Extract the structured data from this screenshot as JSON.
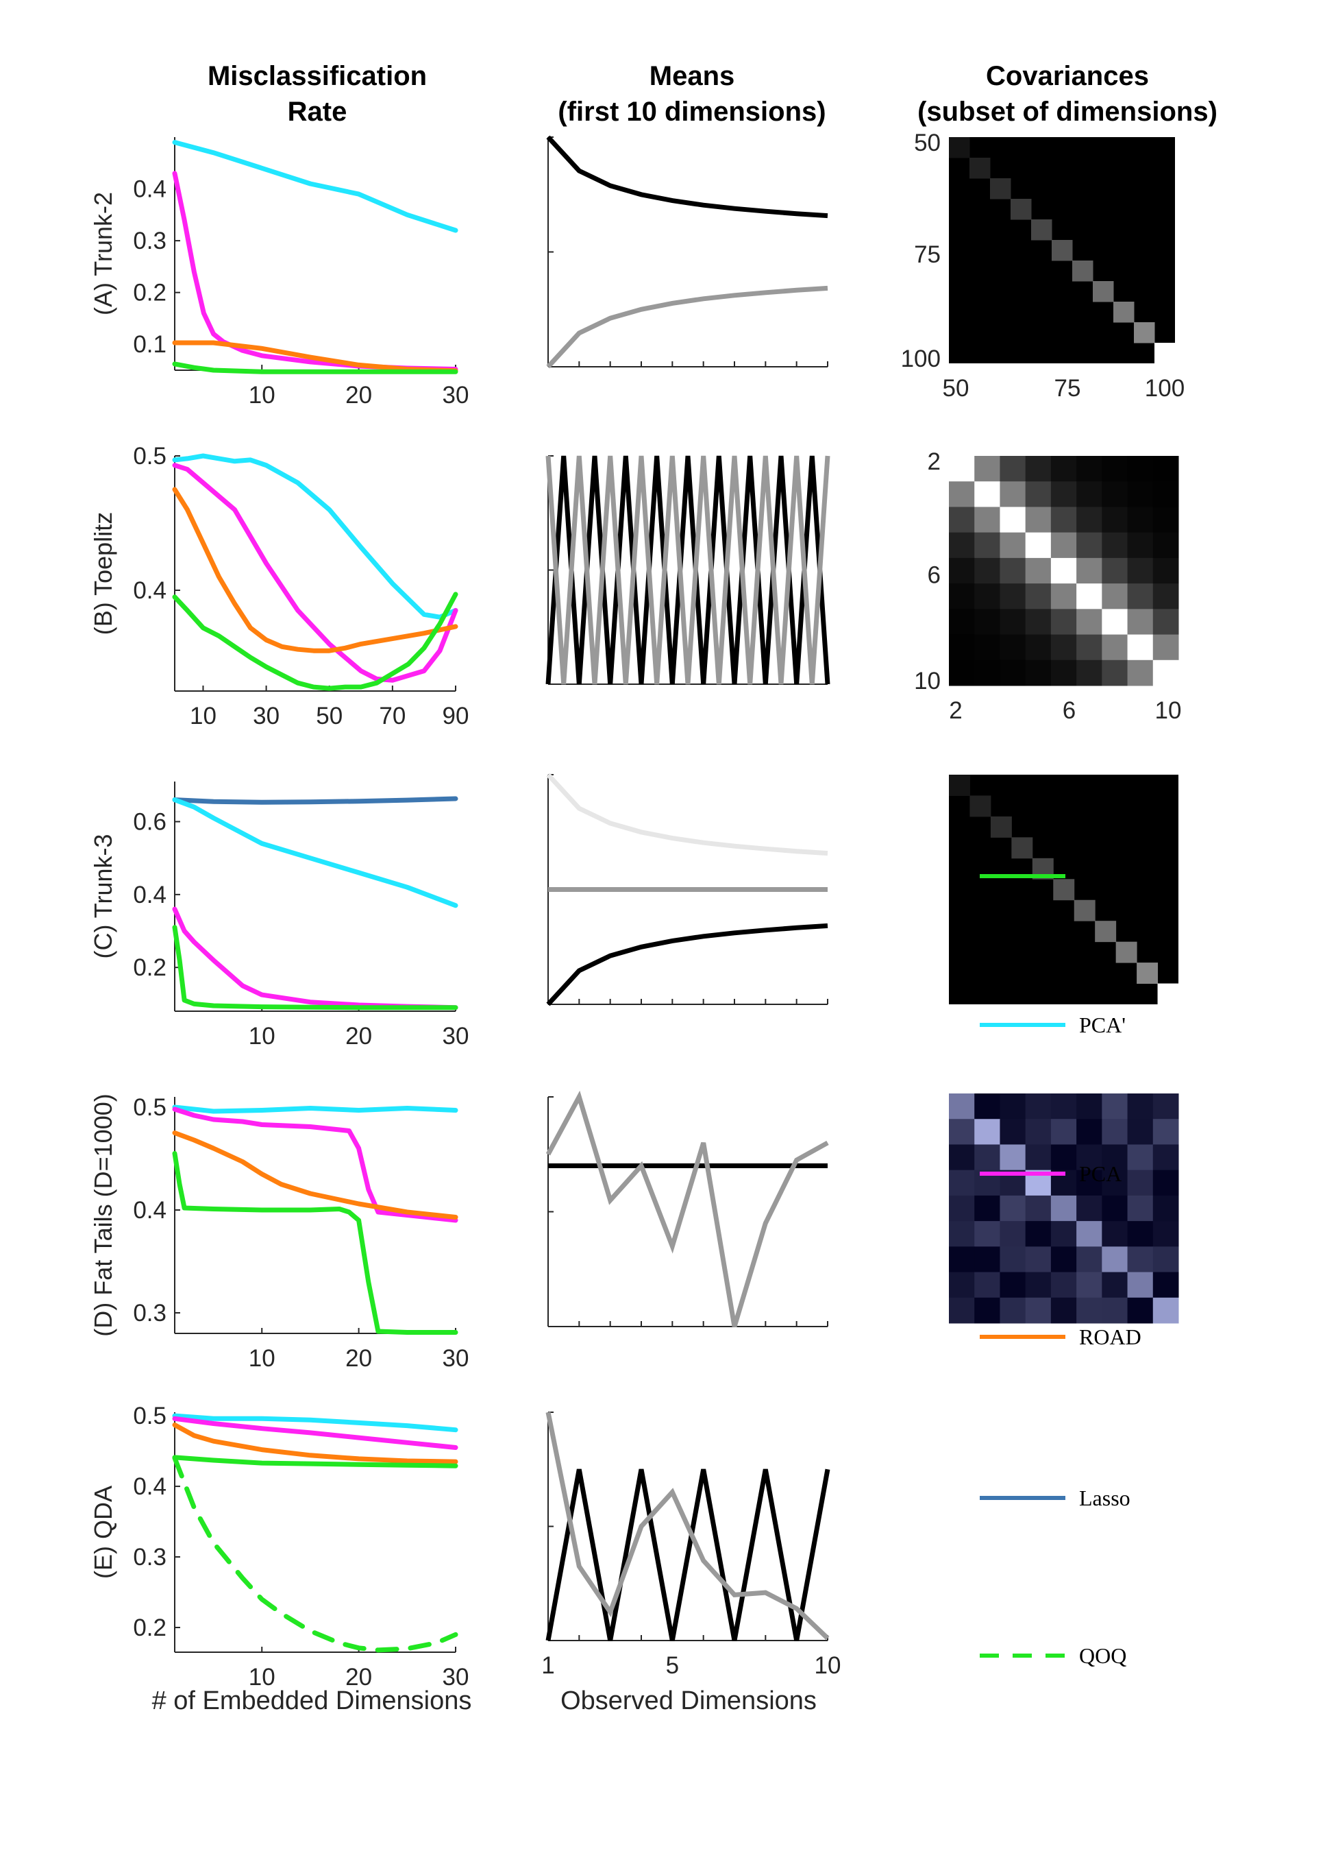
{
  "headers": {
    "col1_line1": "Misclassification",
    "col1_line2": "Rate",
    "col2_line1": "Means",
    "col2_line2": "(first 10 dimensions)",
    "col3_line1": "Covariances",
    "col3_line2": "(subset of dimensions)"
  },
  "colors": {
    "PCA'": "#22e6ff",
    "PCA": "#ff22f2",
    "ROAD": "#ff7f0e",
    "Lasso": "#3c76b0",
    "QOQ": "#22e622",
    "LOL": "#22e622",
    "class1": "#000000",
    "class2": "#999999",
    "class3": "#e6e6e6"
  },
  "legend": [
    {
      "name": "PCA'",
      "color": "#22e6ff",
      "dash": false
    },
    {
      "name": "PCA",
      "color": "#ff22f2",
      "dash": false
    },
    {
      "name": "ROAD",
      "color": "#ff7f0e",
      "dash": false
    },
    {
      "name": "Lasso",
      "color": "#3c76b0",
      "dash": false
    },
    {
      "name": "QOQ",
      "color": "#22e622",
      "dash": true
    }
  ],
  "chart_data": [
    {
      "type": "line",
      "panel": "(A) Trunk-2",
      "ylabel": "(A) Trunk-2",
      "xlabel": "",
      "xlim": [
        1,
        30
      ],
      "ylim": [
        0.05,
        0.5
      ],
      "xticks": [
        10,
        20,
        30
      ],
      "yticks": [
        0.1,
        0.2,
        0.3,
        0.4
      ],
      "ytick_labels": [
        "0.1",
        "0.2",
        "0.3",
        "0.4"
      ],
      "series": [
        {
          "key": "PCA'",
          "x": [
            1,
            5,
            10,
            15,
            20,
            25,
            30
          ],
          "values": [
            0.49,
            0.47,
            0.44,
            0.41,
            0.39,
            0.35,
            0.32
          ]
        },
        {
          "key": "PCA",
          "x": [
            1,
            2,
            3,
            4,
            5,
            6,
            8,
            10,
            15,
            20,
            25,
            30
          ],
          "values": [
            0.43,
            0.34,
            0.24,
            0.16,
            0.12,
            0.105,
            0.088,
            0.078,
            0.066,
            0.058,
            0.054,
            0.052
          ]
        },
        {
          "key": "ROAD",
          "x": [
            1,
            5,
            10,
            15,
            20,
            25,
            30
          ],
          "values": [
            0.103,
            0.103,
            0.092,
            0.075,
            0.06,
            0.052,
            0.049
          ]
        },
        {
          "key": "LOL",
          "x": [
            1,
            3,
            5,
            10,
            15,
            20,
            25,
            30
          ],
          "values": [
            0.062,
            0.055,
            0.05,
            0.047,
            0.047,
            0.047,
            0.047,
            0.047
          ]
        }
      ]
    },
    {
      "type": "line",
      "panel": "(B) Toeplitz",
      "ylabel": "(B) Toeplitz",
      "xlabel": "",
      "xlim": [
        1,
        90
      ],
      "ylim": [
        0.325,
        0.5
      ],
      "xticks": [
        10,
        30,
        50,
        70,
        90
      ],
      "yticks": [
        0.4,
        0.5
      ],
      "ytick_labels": [
        "0.4",
        "0.5"
      ],
      "series": [
        {
          "key": "PCA'",
          "x": [
            1,
            5,
            10,
            15,
            20,
            25,
            30,
            40,
            50,
            60,
            70,
            80,
            85,
            90
          ],
          "values": [
            0.497,
            0.498,
            0.5,
            0.498,
            0.496,
            0.497,
            0.493,
            0.48,
            0.46,
            0.432,
            0.405,
            0.382,
            0.38,
            0.385
          ]
        },
        {
          "key": "PCA",
          "x": [
            1,
            5,
            10,
            15,
            20,
            25,
            30,
            40,
            50,
            60,
            65,
            70,
            80,
            85,
            90
          ],
          "values": [
            0.493,
            0.49,
            0.48,
            0.47,
            0.46,
            0.44,
            0.42,
            0.385,
            0.36,
            0.34,
            0.334,
            0.333,
            0.34,
            0.355,
            0.385
          ]
        },
        {
          "key": "ROAD",
          "x": [
            1,
            5,
            10,
            15,
            20,
            25,
            30,
            35,
            40,
            45,
            50,
            55,
            60,
            70,
            80,
            90
          ],
          "values": [
            0.475,
            0.46,
            0.435,
            0.41,
            0.39,
            0.372,
            0.363,
            0.358,
            0.356,
            0.355,
            0.355,
            0.357,
            0.36,
            0.364,
            0.368,
            0.373
          ]
        },
        {
          "key": "LOL",
          "x": [
            1,
            5,
            10,
            15,
            20,
            25,
            30,
            35,
            40,
            45,
            50,
            55,
            60,
            65,
            70,
            75,
            80,
            85,
            90
          ],
          "values": [
            0.395,
            0.385,
            0.372,
            0.366,
            0.358,
            0.35,
            0.343,
            0.337,
            0.331,
            0.328,
            0.327,
            0.328,
            0.328,
            0.331,
            0.338,
            0.345,
            0.357,
            0.375,
            0.397
          ]
        }
      ]
    },
    {
      "type": "line",
      "panel": "(C) Trunk-3",
      "ylabel": "(C) Trunk-3",
      "xlabel": "",
      "xlim": [
        1,
        30
      ],
      "ylim": [
        0.08,
        0.71
      ],
      "xticks": [
        10,
        20,
        30
      ],
      "yticks": [
        0.2,
        0.4,
        0.6
      ],
      "ytick_labels": [
        "0.2",
        "0.4",
        "0.6"
      ],
      "series": [
        {
          "key": "Lasso",
          "x": [
            1,
            5,
            10,
            15,
            20,
            25,
            30
          ],
          "values": [
            0.66,
            0.655,
            0.653,
            0.654,
            0.656,
            0.659,
            0.663
          ]
        },
        {
          "key": "PCA'",
          "x": [
            1,
            3,
            5,
            10,
            15,
            20,
            25,
            30
          ],
          "values": [
            0.66,
            0.64,
            0.61,
            0.54,
            0.5,
            0.46,
            0.42,
            0.37
          ]
        },
        {
          "key": "PCA",
          "x": [
            1,
            2,
            3,
            5,
            8,
            10,
            15,
            20,
            25,
            30
          ],
          "values": [
            0.36,
            0.3,
            0.27,
            0.22,
            0.15,
            0.125,
            0.105,
            0.097,
            0.093,
            0.09
          ]
        },
        {
          "key": "LOL",
          "x": [
            1,
            1.5,
            2,
            3,
            5,
            10,
            15,
            20,
            25,
            30
          ],
          "values": [
            0.31,
            0.22,
            0.11,
            0.1,
            0.095,
            0.092,
            0.091,
            0.09,
            0.09,
            0.09
          ]
        }
      ]
    },
    {
      "type": "line",
      "panel": "(D) Fat Tails (D=1000)",
      "ylabel": "(D) Fat Tails (D=1000)",
      "xlabel": "",
      "xlim": [
        1,
        30
      ],
      "ylim": [
        0.28,
        0.51
      ],
      "xticks": [
        10,
        20,
        30
      ],
      "yticks": [
        0.3,
        0.4,
        0.5
      ],
      "ytick_labels": [
        "0.3",
        "0.4",
        "0.5"
      ],
      "series": [
        {
          "key": "PCA'",
          "x": [
            1,
            5,
            10,
            15,
            20,
            25,
            30
          ],
          "values": [
            0.5,
            0.496,
            0.497,
            0.499,
            0.497,
            0.499,
            0.497
          ]
        },
        {
          "key": "PCA",
          "x": [
            1,
            3,
            5,
            8,
            10,
            15,
            19,
            20,
            21,
            22,
            25,
            30
          ],
          "values": [
            0.498,
            0.492,
            0.488,
            0.486,
            0.483,
            0.481,
            0.477,
            0.46,
            0.42,
            0.398,
            0.395,
            0.39
          ]
        },
        {
          "key": "ROAD",
          "x": [
            1,
            3,
            5,
            8,
            10,
            12,
            15,
            18,
            20,
            25,
            30
          ],
          "values": [
            0.475,
            0.468,
            0.46,
            0.447,
            0.435,
            0.425,
            0.416,
            0.41,
            0.406,
            0.398,
            0.393
          ]
        },
        {
          "key": "LOL",
          "x": [
            1,
            1.5,
            2,
            5,
            10,
            15,
            18,
            19,
            20,
            21,
            22,
            25,
            30
          ],
          "values": [
            0.455,
            0.425,
            0.402,
            0.401,
            0.4,
            0.4,
            0.401,
            0.398,
            0.39,
            0.33,
            0.282,
            0.281,
            0.281
          ]
        }
      ]
    },
    {
      "type": "line",
      "panel": "(E) QDA",
      "ylabel": "(E) QDA",
      "xlabel": "# of Embedded Dimensions",
      "xlim": [
        1,
        30
      ],
      "ylim": [
        0.165,
        0.505
      ],
      "xticks": [
        10,
        20,
        30
      ],
      "yticks": [
        0.2,
        0.3,
        0.4,
        0.5
      ],
      "ytick_labels": [
        "0.2",
        "0.3",
        "0.4",
        "0.5"
      ],
      "series": [
        {
          "key": "PCA'",
          "x": [
            1,
            5,
            10,
            15,
            20,
            25,
            30
          ],
          "values": [
            0.5,
            0.496,
            0.496,
            0.494,
            0.49,
            0.486,
            0.48
          ]
        },
        {
          "key": "PCA",
          "x": [
            1,
            5,
            10,
            15,
            20,
            25,
            30
          ],
          "values": [
            0.496,
            0.489,
            0.482,
            0.476,
            0.469,
            0.462,
            0.455
          ]
        },
        {
          "key": "ROAD",
          "x": [
            1,
            3,
            5,
            10,
            15,
            20,
            25,
            30
          ],
          "values": [
            0.487,
            0.472,
            0.464,
            0.452,
            0.444,
            0.439,
            0.436,
            0.435
          ]
        },
        {
          "key": "LOL",
          "x": [
            1,
            5,
            10,
            15,
            20,
            25,
            30
          ],
          "values": [
            0.441,
            0.437,
            0.433,
            0.432,
            0.431,
            0.43,
            0.429
          ]
        },
        {
          "key": "QOQ",
          "dash": true,
          "x": [
            1,
            3,
            5,
            8,
            10,
            12,
            15,
            18,
            20,
            22,
            25,
            28,
            30
          ],
          "values": [
            0.44,
            0.37,
            0.32,
            0.27,
            0.24,
            0.22,
            0.195,
            0.178,
            0.171,
            0.168,
            0.17,
            0.178,
            0.19
          ]
        }
      ]
    },
    {
      "type": "line",
      "panel": "Means (A)",
      "xlim": [
        1,
        10
      ],
      "ylim": [
        -1,
        1
      ],
      "series": [
        {
          "key": "class1",
          "x": [
            1,
            2,
            3,
            4,
            5,
            6,
            7,
            8,
            9,
            10
          ],
          "values": [
            1.0,
            0.707,
            0.577,
            0.5,
            0.447,
            0.408,
            0.378,
            0.354,
            0.333,
            0.316
          ]
        },
        {
          "key": "class2",
          "x": [
            1,
            2,
            3,
            4,
            5,
            6,
            7,
            8,
            9,
            10
          ],
          "values": [
            -1.0,
            -0.707,
            -0.577,
            -0.5,
            -0.447,
            -0.408,
            -0.378,
            -0.354,
            -0.333,
            -0.316
          ]
        }
      ]
    },
    {
      "type": "line",
      "panel": "Means (B)",
      "xlim": [
        1,
        10
      ],
      "ylim": [
        -1,
        1
      ],
      "series": [
        {
          "key": "class1",
          "x": [
            1,
            1.5,
            2,
            2.5,
            3,
            3.5,
            4,
            4.5,
            5,
            5.5,
            6,
            6.5,
            7,
            7.5,
            8,
            8.5,
            9,
            9.5,
            10
          ],
          "values": [
            -1,
            1,
            -1,
            1,
            -1,
            1,
            -1,
            1,
            -1,
            1,
            -1,
            1,
            -1,
            1,
            -1,
            1,
            -1,
            1,
            -1
          ]
        },
        {
          "key": "class2",
          "x": [
            1,
            1.5,
            2,
            2.5,
            3,
            3.5,
            4,
            4.5,
            5,
            5.5,
            6,
            6.5,
            7,
            7.5,
            8,
            8.5,
            9,
            9.5,
            10
          ],
          "values": [
            1,
            -1,
            1,
            -1,
            1,
            -1,
            1,
            -1,
            1,
            -1,
            1,
            -1,
            1,
            -1,
            1,
            -1,
            1,
            -1,
            1
          ]
        }
      ]
    },
    {
      "type": "line",
      "panel": "Means (C)",
      "xlim": [
        1,
        10
      ],
      "ylim": [
        -1,
        1
      ],
      "series": [
        {
          "key": "class3",
          "x": [
            1,
            2,
            3,
            4,
            5,
            6,
            7,
            8,
            9,
            10
          ],
          "values": [
            1.0,
            0.707,
            0.577,
            0.5,
            0.447,
            0.408,
            0.378,
            0.354,
            0.333,
            0.316
          ]
        },
        {
          "key": "class2",
          "x": [
            1,
            10
          ],
          "values": [
            0,
            0
          ]
        },
        {
          "key": "class1",
          "x": [
            1,
            2,
            3,
            4,
            5,
            6,
            7,
            8,
            9,
            10
          ],
          "values": [
            -1.0,
            -0.707,
            -0.577,
            -0.5,
            -0.447,
            -0.408,
            -0.378,
            -0.354,
            -0.333,
            -0.316
          ]
        }
      ]
    },
    {
      "type": "line",
      "panel": "Means (D)",
      "xlim": [
        1,
        10
      ],
      "ylim": [
        -1,
        1
      ],
      "series": [
        {
          "key": "class1",
          "x": [
            1,
            10
          ],
          "values": [
            0.4,
            0.4
          ]
        },
        {
          "key": "class2",
          "x": [
            1,
            2,
            3,
            4,
            5,
            6,
            7,
            8,
            9,
            10
          ],
          "values": [
            0.5,
            1.0,
            0.1,
            0.4,
            -0.3,
            0.6,
            -1.0,
            -0.1,
            0.45,
            0.6
          ]
        }
      ]
    },
    {
      "type": "line",
      "panel": "Means (E)",
      "xlim": [
        1,
        10
      ],
      "ylim": [
        -1,
        1
      ],
      "xticks": [
        1,
        5,
        10
      ],
      "xlabel": "Observed Dimensions",
      "series": [
        {
          "key": "class1",
          "x": [
            1,
            2,
            3,
            4,
            5,
            6,
            7,
            8,
            9,
            10
          ],
          "values": [
            -1,
            0.5,
            -1,
            0.5,
            -1,
            0.5,
            -1,
            0.5,
            -1,
            0.5
          ]
        },
        {
          "key": "class2",
          "x": [
            1,
            2,
            3,
            4,
            5,
            6,
            7,
            8,
            9,
            10
          ],
          "values": [
            1.0,
            -0.35,
            -0.75,
            0.0,
            0.3,
            -0.3,
            -0.6,
            -0.58,
            -0.72,
            -0.98
          ]
        }
      ]
    },
    {
      "type": "heatmap",
      "panel": "Covariance (A)",
      "xticks": [
        "50",
        "75",
        "100"
      ],
      "yticks": [
        "50",
        "75",
        "100"
      ],
      "pattern": "diagonal-increasing",
      "n": 11
    },
    {
      "type": "heatmap",
      "panel": "Covariance (B)",
      "xticks": [
        "2",
        "6",
        "10"
      ],
      "yticks": [
        "2",
        "6",
        "10"
      ],
      "pattern": "toeplitz",
      "n": 9
    },
    {
      "type": "heatmap",
      "panel": "Covariance (C)",
      "pattern": "diagonal-increasing",
      "n": 11
    },
    {
      "type": "heatmap",
      "panel": "Covariance (D)",
      "pattern": "fat-tails",
      "n": 9
    }
  ]
}
